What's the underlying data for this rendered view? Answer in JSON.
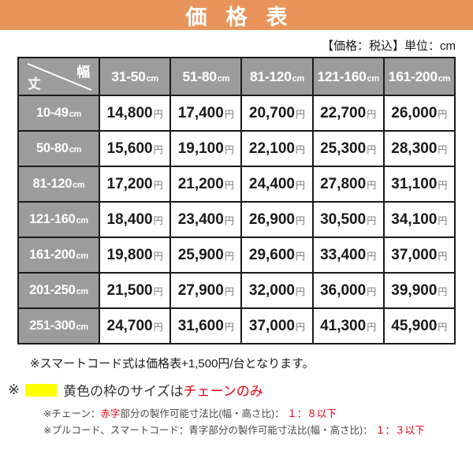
{
  "header": {
    "title": "価格表"
  },
  "meta_note": "【価格：税込】単位：cm",
  "table": {
    "corner": {
      "width_label": "幅",
      "height_label": "丈"
    },
    "unit_cm": "cm",
    "unit_yen": "円",
    "col_headers": [
      "31-50",
      "51-80",
      "81-120",
      "121-160",
      "161-200"
    ],
    "rows": [
      {
        "label": "10-49",
        "cells": [
          {
            "v": "14,800",
            "s": "plain"
          },
          {
            "v": "17,400",
            "s": "plain"
          },
          {
            "v": "20,700",
            "s": "plain"
          },
          {
            "v": "22,700",
            "s": "plain"
          },
          {
            "v": "26,000",
            "s": "plain"
          }
        ]
      },
      {
        "label": "50-80",
        "cells": [
          {
            "v": "15,600",
            "s": "plain"
          },
          {
            "v": "19,100",
            "s": "plain"
          },
          {
            "v": "22,100",
            "s": "plain"
          },
          {
            "v": "25,300",
            "s": "plain"
          },
          {
            "v": "28,300",
            "s": "plain"
          }
        ]
      },
      {
        "label": "81-120",
        "cells": [
          {
            "v": "17,200",
            "s": "blue"
          },
          {
            "v": "21,200",
            "s": "plain"
          },
          {
            "v": "24,400",
            "s": "plain"
          },
          {
            "v": "27,800",
            "s": "plain"
          },
          {
            "v": "31,100",
            "s": "plain"
          }
        ]
      },
      {
        "label": "121-160",
        "cells": [
          {
            "v": "18,400",
            "s": "blue"
          },
          {
            "v": "23,400",
            "s": "blue"
          },
          {
            "v": "26,900",
            "s": "plain"
          },
          {
            "v": "30,500",
            "s": "plain"
          },
          {
            "v": "34,100",
            "s": "plain"
          }
        ]
      },
      {
        "label": "161-200",
        "cells": [
          {
            "v": "19,800",
            "s": "yellow"
          },
          {
            "v": "25,900",
            "s": "blue"
          },
          {
            "v": "29,600",
            "s": "plain"
          },
          {
            "v": "33,400",
            "s": "plain"
          },
          {
            "v": "37,000",
            "s": "plain"
          }
        ]
      },
      {
        "label": "201-250",
        "cells": [
          {
            "v": "21,500",
            "s": "red-yellow"
          },
          {
            "v": "27,900",
            "s": "blue"
          },
          {
            "v": "32,000",
            "s": "blue"
          },
          {
            "v": "36,000",
            "s": "plain"
          },
          {
            "v": "39,900",
            "s": "plain"
          }
        ]
      },
      {
        "label": "251-300",
        "cells": [
          {
            "v": "24,700",
            "s": "red-yellow"
          },
          {
            "v": "31,600",
            "s": "yellow"
          },
          {
            "v": "37,000",
            "s": "blue"
          },
          {
            "v": "41,300",
            "s": "plain"
          },
          {
            "v": "45,900",
            "s": "plain"
          }
        ]
      }
    ]
  },
  "notes": {
    "smart_cord": "※スマートコード式は価格表+1,500円/台となります。",
    "yellow": {
      "prefix": "※",
      "body": "黄色の枠のサイズは",
      "highlight": "チェーンのみ"
    },
    "chain": {
      "pre": "※チェーン：",
      "red1": "赤字",
      "mid": "部分の製作可能寸法比(幅・高さ比)：",
      "red2": "１：８以下"
    },
    "pull_cord": {
      "pre": "※プルコード、スマートコード：青字部分の製作可能寸法比(幅・高さ比)：",
      "red": "１：３以下"
    }
  },
  "colors": {
    "accent_orange": "#E8945A",
    "header_gray": "#9C9C9C",
    "highlight_yellow": "#FFFF00",
    "price_blue": "#1778BE",
    "price_red": "#E60012",
    "border_black": "#1A1A1A"
  },
  "chart_data": {
    "type": "table",
    "title": "価格表",
    "unit_note": "【価格：税込】単位：cm",
    "col_axis_label": "幅",
    "row_axis_label": "丈",
    "columns_cm": [
      "31-50",
      "51-80",
      "81-120",
      "121-160",
      "161-200"
    ],
    "rows_cm": [
      "10-49",
      "50-80",
      "81-120",
      "121-160",
      "161-200",
      "201-250",
      "251-300"
    ],
    "prices_yen": [
      [
        14800,
        17400,
        20700,
        22700,
        26000
      ],
      [
        15600,
        19100,
        22100,
        25300,
        28300
      ],
      [
        17200,
        21200,
        24400,
        27800,
        31100
      ],
      [
        18400,
        23400,
        26900,
        30500,
        34100
      ],
      [
        19800,
        25900,
        29600,
        33400,
        37000
      ],
      [
        21500,
        27900,
        32000,
        36000,
        39900
      ],
      [
        24700,
        31600,
        37000,
        41300,
        45900
      ]
    ],
    "blue_text_cells_row_col": [
      [
        2,
        0
      ],
      [
        3,
        0
      ],
      [
        3,
        1
      ],
      [
        4,
        1
      ],
      [
        5,
        1
      ],
      [
        5,
        2
      ],
      [
        6,
        2
      ]
    ],
    "red_text_cells_row_col": [
      [
        5,
        0
      ],
      [
        6,
        0
      ]
    ],
    "yellow_bg_cells_row_col": [
      [
        4,
        0
      ],
      [
        5,
        0
      ],
      [
        6,
        0
      ],
      [
        6,
        1
      ]
    ],
    "legend_notes": [
      "※スマートコード式は価格表+1,500円/台となります。",
      "※ 黄色の枠のサイズはチェーンのみ",
      "※チェーン：赤字部分の製作可能寸法比(幅・高さ比)： １：８以下",
      "※プルコード、スマートコード：青字部分の製作可能寸法比(幅・高さ比)： １：３以下"
    ]
  }
}
